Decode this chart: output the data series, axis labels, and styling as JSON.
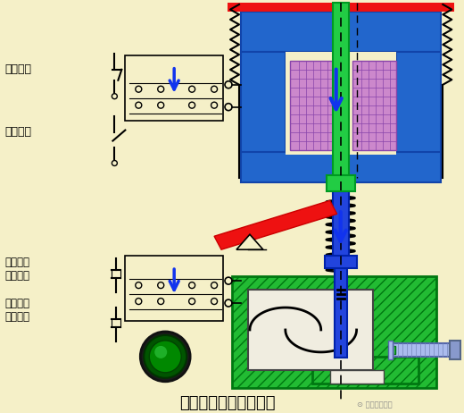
{
  "bg_color": "#f5f0c8",
  "title": "断电延时型时间继电器",
  "title_fontsize": 13,
  "blue_body": "#2266cc",
  "blue_shaft": "#2244dd",
  "green_core": "#22cc44",
  "green_dashpot": "#22bb33",
  "pink_coil": "#cc88cc",
  "red_bar": "#ee1111",
  "red_top": "#ee1111",
  "labels": {
    "shuanchangbi": "瞬动常闭",
    "shuanchangkai": "瞬动常开",
    "yanshiduankai": "延时断开\n常开触头",
    "yanshibihe": "延时闭合\n常闭触头"
  }
}
